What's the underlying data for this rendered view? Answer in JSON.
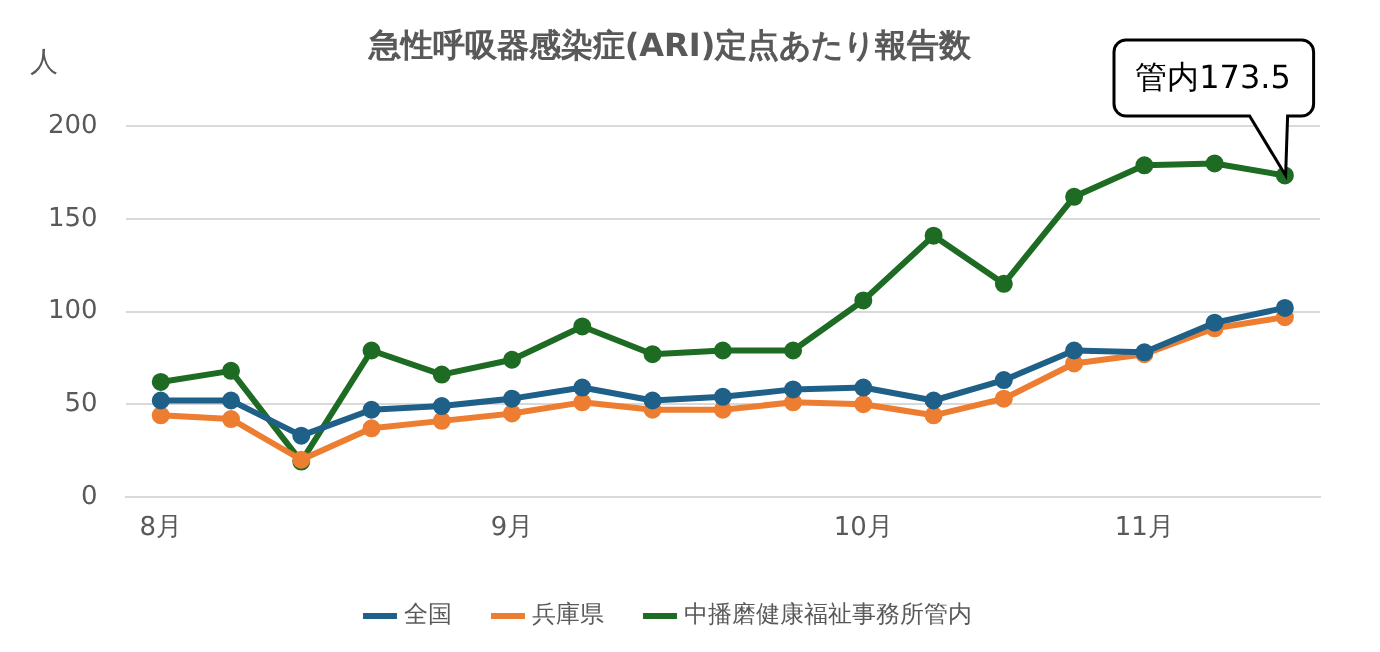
{
  "chart_data": {
    "type": "line",
    "title": "急性呼吸器感染症(ARI)定点あたり報告数",
    "ylabel": "人",
    "categories": [
      "8月",
      null,
      null,
      null,
      null,
      "9月",
      null,
      null,
      null,
      null,
      "10月",
      null,
      null,
      null,
      "11月",
      null,
      null
    ],
    "series": [
      {
        "name": "全国",
        "color": "#1f6088",
        "values": [
          52,
          52,
          33,
          47,
          49,
          53,
          59,
          52,
          54,
          58,
          59,
          52,
          63,
          79,
          78,
          94,
          102
        ]
      },
      {
        "name": "兵庫県",
        "color": "#ed7d31",
        "values": [
          44,
          42,
          20,
          37,
          41,
          45,
          51,
          47,
          47,
          51,
          50,
          44,
          53,
          72,
          77,
          91,
          97
        ]
      },
      {
        "name": "中播磨健康福祉事務所管内",
        "color": "#1e6b24",
        "values": [
          62,
          68,
          19,
          79,
          66,
          74,
          92,
          77,
          79,
          79,
          106,
          141,
          115,
          162,
          179,
          180,
          173.5
        ]
      }
    ],
    "ylim": [
      0,
      200
    ],
    "yticks": [
      0,
      50,
      100,
      150,
      200
    ],
    "grid": "y",
    "legend": "bottom",
    "marker": "circle",
    "line_style": "solid",
    "annotations": [
      "管内173.5"
    ]
  }
}
